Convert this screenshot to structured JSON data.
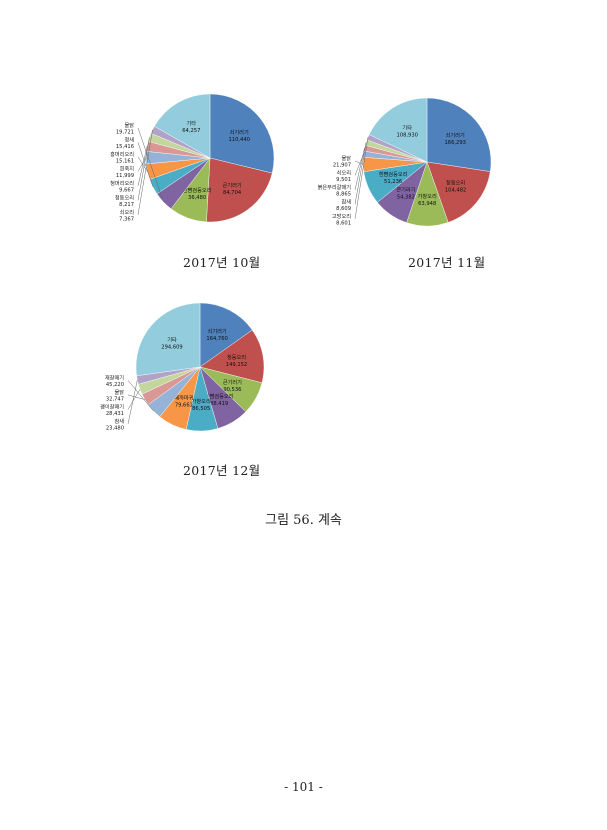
{
  "colors": {
    "blue": "#4F81BD",
    "red": "#C0504D",
    "green": "#9BBB59",
    "purple": "#8064A2",
    "teal": "#4BACC6",
    "orange": "#F79646",
    "light_blue": "#95B3D7",
    "pink": "#D99795",
    "light_green": "#C3D69B",
    "lavender": "#B3A2C7",
    "sky": "#93CDDD"
  },
  "chart_data": [
    {
      "type": "pie",
      "caption": "2017년 10월",
      "slices": [
        {
          "label": "쇠기러기",
          "value": "110,440",
          "num": 110440,
          "color": "#4F81BD"
        },
        {
          "label": "큰기러기",
          "value": "84,704",
          "num": 84704,
          "color": "#C0504D"
        },
        {
          "label": "흰뺨검둥오리",
          "value": "36,480",
          "num": 36480,
          "color": "#9BBB59"
        },
        {
          "label": "물닭",
          "value": "19,721",
          "num": 19721,
          "color": "#8064A2"
        },
        {
          "label": "청새",
          "value": "15,416",
          "num": 15416,
          "color": "#4BACC6"
        },
        {
          "label": "홍머리오리",
          "value": "15,161",
          "num": 15161,
          "color": "#F79646"
        },
        {
          "label": "흰죽지",
          "value": "11,999",
          "num": 11999,
          "color": "#95B3D7"
        },
        {
          "label": "청머리오리",
          "value": "9,667",
          "num": 9667,
          "color": "#D99795"
        },
        {
          "label": "청둥오리",
          "value": "8,217",
          "num": 8217,
          "color": "#C3D69B"
        },
        {
          "label": "쇠오리",
          "value": "7,367",
          "num": 7367,
          "color": "#B3A2C7"
        },
        {
          "label": "기타",
          "value": "64,257",
          "num": 64257,
          "color": "#93CDDD"
        }
      ]
    },
    {
      "type": "pie",
      "caption": "2017년 11월",
      "slices": [
        {
          "label": "쇠기러기",
          "value": "166,293",
          "num": 166293,
          "color": "#4F81BD"
        },
        {
          "label": "청둥오리",
          "value": "104,482",
          "num": 104482,
          "color": "#C0504D"
        },
        {
          "label": "가창오리",
          "value": "63,948",
          "num": 63948,
          "color": "#9BBB59"
        },
        {
          "label": "큰기러기",
          "value": "54,382",
          "num": 54382,
          "color": "#8064A2"
        },
        {
          "label": "흰뺨검둥오리",
          "value": "51,236",
          "num": 51236,
          "color": "#4BACC6"
        },
        {
          "label": "물닭",
          "value": "21,907",
          "num": 21907,
          "color": "#F79646"
        },
        {
          "label": "쇠오리",
          "value": "9,501",
          "num": 9501,
          "color": "#95B3D7"
        },
        {
          "label": "붉은부리갈매기",
          "value": "8,865",
          "num": 8865,
          "color": "#D99795"
        },
        {
          "label": "참새",
          "value": "8,609",
          "num": 8609,
          "color": "#C3D69B"
        },
        {
          "label": "고방오리",
          "value": "8,601",
          "num": 8601,
          "color": "#B3A2C7"
        },
        {
          "label": "기타",
          "value": "108,930",
          "num": 108930,
          "color": "#93CDDD"
        }
      ]
    },
    {
      "type": "pie",
      "caption": "2017년 12월",
      "slices": [
        {
          "label": "쇠기러기",
          "value": "164,760",
          "num": 164760,
          "color": "#4F81BD"
        },
        {
          "label": "청둥오리",
          "value": "149,152",
          "num": 149152,
          "color": "#C0504D"
        },
        {
          "label": "큰기러기",
          "value": "90,536",
          "num": 90536,
          "color": "#9BBB59"
        },
        {
          "label": "흰뺨검둥오리",
          "value": "88,419",
          "num": 88419,
          "color": "#8064A2"
        },
        {
          "label": "가창오리",
          "value": "86,505",
          "num": 86505,
          "color": "#4BACC6"
        },
        {
          "label": "떼까마귀",
          "value": "79,661",
          "num": 79661,
          "color": "#F79646"
        },
        {
          "label": "재갈매기",
          "value": "45,220",
          "num": 45220,
          "color": "#95B3D7"
        },
        {
          "label": "물닭",
          "value": "32,747",
          "num": 32747,
          "color": "#D99795"
        },
        {
          "label": "괭이갈매기",
          "value": "28,431",
          "num": 28431,
          "color": "#C3D69B"
        },
        {
          "label": "참새",
          "value": "23,480",
          "num": 23480,
          "color": "#B3A2C7"
        },
        {
          "label": "기타",
          "value": "294,609",
          "num": 294609,
          "color": "#93CDDD"
        }
      ]
    }
  ],
  "figure_caption": "그림 56. 계속",
  "page_number": "- 101 -"
}
